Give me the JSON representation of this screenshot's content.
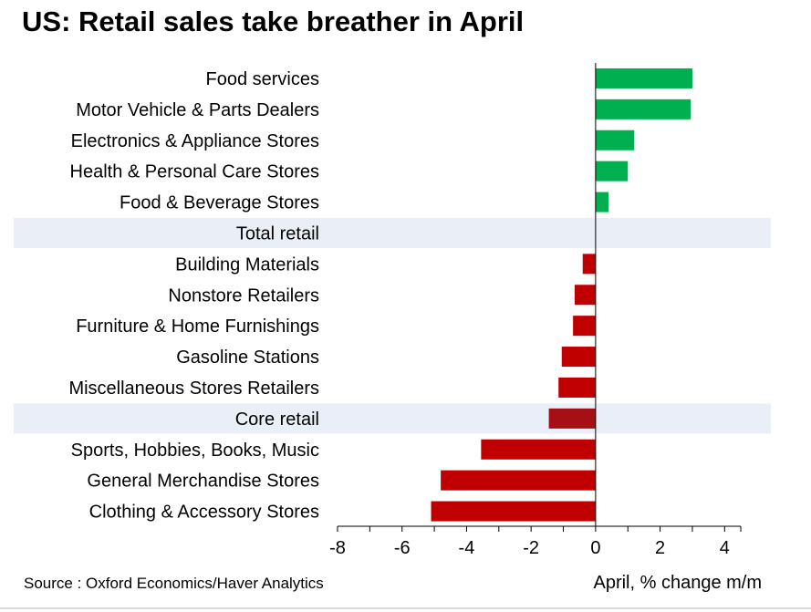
{
  "title": "US: Retail sales take breather in April",
  "source": "Source : Oxford Economics/Haver Analytics",
  "colors": {
    "positive": "#00b050",
    "negative": "#c00000",
    "core": "#a50f15",
    "highlight_band": "#e9eef7",
    "axis": "#000000"
  },
  "chart_data": {
    "type": "bar",
    "orientation": "horizontal",
    "title": "US: Retail sales take breather in April",
    "xlabel": "April, % change m/m",
    "ylabel": "",
    "xlim": [
      -8,
      4.5
    ],
    "xticks": [
      -8,
      -6,
      -4,
      -2,
      0,
      2,
      4
    ],
    "xtick_labels": [
      "-8",
      "-6",
      "-4",
      "-2",
      "0",
      "2",
      "4"
    ],
    "grid": false,
    "legend": "none",
    "highlighted_categories": [
      "Total retail",
      "Core retail"
    ],
    "categories": [
      "Food services",
      "Motor Vehicle & Parts Dealers",
      "Electronics & Appliance Stores",
      "Health & Personal Care Stores",
      "Food & Beverage Stores",
      "Total retail",
      "Building Materials",
      "Nonstore Retailers",
      "Furniture & Home Furnishings",
      "Gasoline Stations",
      "Miscellaneous Stores Retailers",
      "Core retail",
      "Sports, Hobbies, Books, Music",
      "General Merchandise Stores",
      "Clothing & Accessory Stores"
    ],
    "values": [
      3.0,
      2.95,
      1.2,
      1.0,
      0.4,
      0.0,
      -0.4,
      -0.65,
      -0.7,
      -1.05,
      -1.15,
      -1.45,
      -3.55,
      -4.8,
      -5.1
    ]
  }
}
